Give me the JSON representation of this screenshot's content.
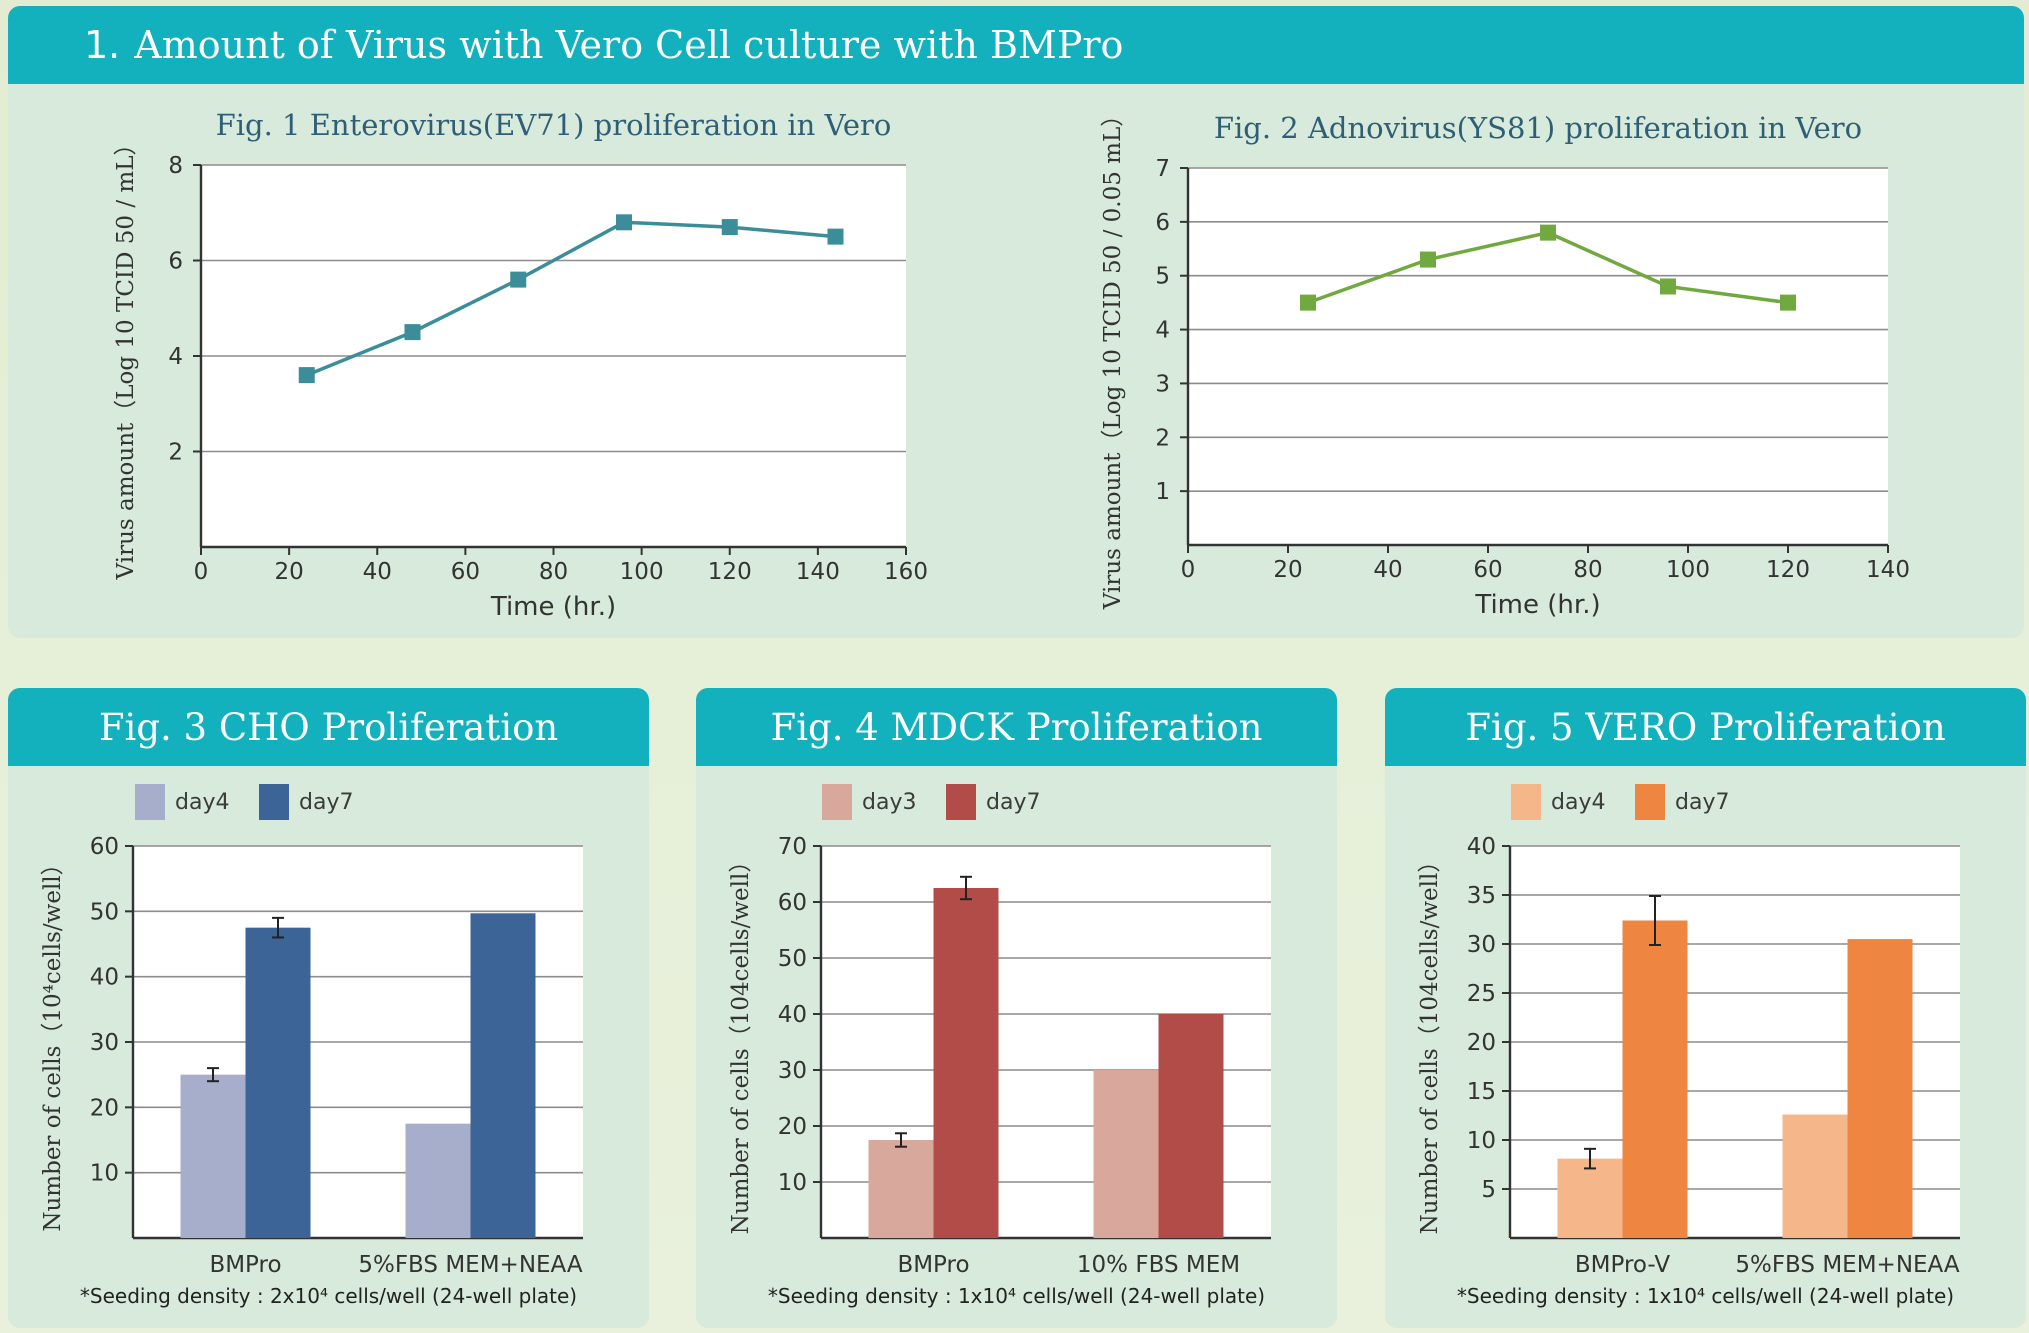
{
  "section": {
    "number": "1.",
    "title": "Amount of Virus with Vero Cell culture with BMPro"
  },
  "colors": {
    "header_bg": "#12b1bd",
    "panel_bg": "#d7eadb",
    "fig1_line": "#3b8e99",
    "fig2_line": "#71a83f",
    "fig3_day_a": "#a6aecb",
    "fig3_day_b": "#3c6497",
    "fig4_day_a": "#d9a89d",
    "fig4_day_b": "#b24c48",
    "fig5_day_a": "#f5b78a",
    "fig5_day_b": "#ee8642"
  },
  "chart_data": [
    {
      "id": "fig1",
      "type": "line",
      "title_prefix": "Fig. 1",
      "title": "Enterovirus(EV71) proliferation in Vero",
      "xlabel": "Time (hr.)",
      "ylabel": "Virus amount（Log 10 TCID 50 / mL）",
      "xlim": [
        0,
        160
      ],
      "ylim": [
        0,
        8
      ],
      "xticks": [
        0,
        20,
        40,
        60,
        80,
        100,
        120,
        140,
        160
      ],
      "yticks": [
        2,
        4,
        6,
        8
      ],
      "grid": "horizontal",
      "x": [
        24,
        48,
        72,
        96,
        120,
        144
      ],
      "y": [
        3.6,
        4.5,
        5.6,
        6.8,
        6.7,
        6.5
      ]
    },
    {
      "id": "fig2",
      "type": "line",
      "title_prefix": "Fig. 2",
      "title": "Adnovirus(YS81) proliferation in Vero",
      "xlabel": "Time (hr.)",
      "ylabel": "Virus amount（Log 10 TCID 50 / 0.05 mL）",
      "xlim": [
        0,
        140
      ],
      "ylim": [
        0,
        7
      ],
      "xticks": [
        0,
        20,
        40,
        60,
        80,
        100,
        120,
        140
      ],
      "yticks": [
        1,
        2,
        3,
        4,
        5,
        6,
        7
      ],
      "grid": "horizontal",
      "x": [
        24,
        48,
        72,
        96,
        120
      ],
      "y": [
        4.5,
        5.3,
        5.8,
        4.8,
        4.5
      ]
    },
    {
      "id": "fig3",
      "type": "bar",
      "title": "Fig. 3  CHO Proliferation",
      "ylabel": "Number of cells（10⁴cells/well）",
      "categories": [
        "BMPro",
        "5%FBS MEM+NEAA"
      ],
      "ylim": [
        0,
        60
      ],
      "yticks": [
        10,
        20,
        30,
        40,
        50,
        60
      ],
      "legend_position": "top-left",
      "series": [
        {
          "name": "day4",
          "values": [
            25,
            17.5
          ],
          "errors": [
            1,
            0
          ]
        },
        {
          "name": "day7",
          "values": [
            47.5,
            49.7
          ],
          "errors": [
            1.5,
            0
          ]
        }
      ],
      "footnote": "*Seeding density : 2x10⁴ cells/well (24-well plate)"
    },
    {
      "id": "fig4",
      "type": "bar",
      "title": "Fig. 4  MDCK Proliferation",
      "ylabel": "Number of cells（104cells/well）",
      "categories": [
        "BMPro",
        "10% FBS MEM"
      ],
      "ylim": [
        0,
        70
      ],
      "yticks": [
        10,
        20,
        30,
        40,
        50,
        60,
        70
      ],
      "legend_position": "top-left",
      "series": [
        {
          "name": "day3",
          "values": [
            17.5,
            30
          ],
          "errors": [
            1.2,
            0
          ]
        },
        {
          "name": "day7",
          "values": [
            62.5,
            40
          ],
          "errors": [
            2,
            0
          ]
        }
      ],
      "footnote": "*Seeding density : 1x10⁴ cells/well (24-well plate)"
    },
    {
      "id": "fig5",
      "type": "bar",
      "title": "Fig. 5  VERO Proliferation",
      "ylabel": "Number of cells（104cells/well）",
      "categories": [
        "BMPro-V",
        "5%FBS MEM+NEAA"
      ],
      "ylim": [
        0,
        40
      ],
      "yticks": [
        5,
        10,
        15,
        20,
        25,
        30,
        35,
        40
      ],
      "legend_position": "top-left",
      "series": [
        {
          "name": "day4",
          "values": [
            8.1,
            12.6
          ],
          "errors": [
            1,
            0
          ]
        },
        {
          "name": "day7",
          "values": [
            32.4,
            30.5
          ],
          "errors": [
            2.5,
            0
          ]
        }
      ],
      "footnote": "*Seeding density : 1x10⁴ cells/well (24-well plate)"
    }
  ]
}
